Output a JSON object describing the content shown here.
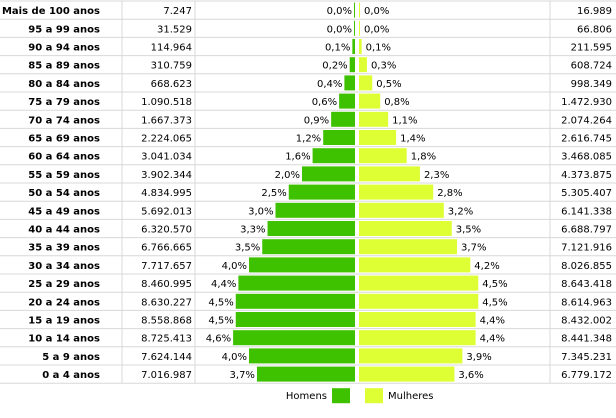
{
  "chart_data": {
    "type": "bar",
    "orientation": "horizontal",
    "categories": [
      "Mais de 100 anos",
      "95 a 99 anos",
      "90 a 94 anos",
      "85 a 89 anos",
      "80 a 84 anos",
      "75 a 79 anos",
      "70 a 74 anos",
      "65 a 69 anos",
      "60 a 64 anos",
      "55 a 59 anos",
      "50 a 54 anos",
      "45 a 49 anos",
      "40 a 44 anos",
      "35 a 39 anos",
      "30 a 34 anos",
      "25 a 29 anos",
      "20 a 24 anos",
      "15 a 19 anos",
      "10 a 14 anos",
      "5 a 9 anos",
      "0 a 4 anos"
    ],
    "series": [
      {
        "name": "Homens",
        "color": "#3ec200",
        "percent": [
          0.0,
          0.0,
          0.1,
          0.2,
          0.4,
          0.6,
          0.9,
          1.2,
          1.6,
          2.0,
          2.5,
          3.0,
          3.3,
          3.5,
          4.0,
          4.4,
          4.5,
          4.5,
          4.6,
          4.0,
          3.7
        ],
        "percent_labels": [
          "0,0%",
          "0,0%",
          "0,1%",
          "0,2%",
          "0,4%",
          "0,6%",
          "0,9%",
          "1,2%",
          "1,6%",
          "2,0%",
          "2,5%",
          "3,0%",
          "3,3%",
          "3,5%",
          "4,0%",
          "4,4%",
          "4,5%",
          "4,5%",
          "4,6%",
          "4,0%",
          "3,7%"
        ],
        "population_labels": [
          "7.247",
          "31.529",
          "114.964",
          "310.759",
          "668.623",
          "1.090.518",
          "1.667.373",
          "2.224.065",
          "3.041.034",
          "3.902.344",
          "4.834.995",
          "5.692.013",
          "6.320.570",
          "6.766.665",
          "7.717.657",
          "8.460.995",
          "8.630.227",
          "8.558.868",
          "8.725.413",
          "7.624.144",
          "7.016.987"
        ]
      },
      {
        "name": "Mulheres",
        "color": "#ddff33",
        "percent": [
          0.0,
          0.0,
          0.1,
          0.3,
          0.5,
          0.8,
          1.1,
          1.4,
          1.8,
          2.3,
          2.8,
          3.2,
          3.5,
          3.7,
          4.2,
          4.5,
          4.5,
          4.4,
          4.4,
          3.9,
          3.6
        ],
        "percent_labels": [
          "0,0%",
          "0,0%",
          "0,1%",
          "0,3%",
          "0,5%",
          "0,8%",
          "1,1%",
          "1,4%",
          "1,8%",
          "2,3%",
          "2,8%",
          "3,2%",
          "3,5%",
          "3,7%",
          "4,2%",
          "4,5%",
          "4,5%",
          "4,4%",
          "4,4%",
          "3,9%",
          "3,6%"
        ],
        "population_labels": [
          "16.989",
          "66.806",
          "211.595",
          "608.724",
          "998.349",
          "1.472.930",
          "2.074.264",
          "2.616.745",
          "3.468.085",
          "4.373.875",
          "5.305.407",
          "6.141.338",
          "6.688.797",
          "7.121.916",
          "8.026.855",
          "8.643.418",
          "8.614.963",
          "8.432.002",
          "8.441.348",
          "7.345.231",
          "6.779.172"
        ]
      }
    ],
    "x_max_percent": 5.0,
    "grid": true,
    "legend_position": "bottom-center"
  }
}
